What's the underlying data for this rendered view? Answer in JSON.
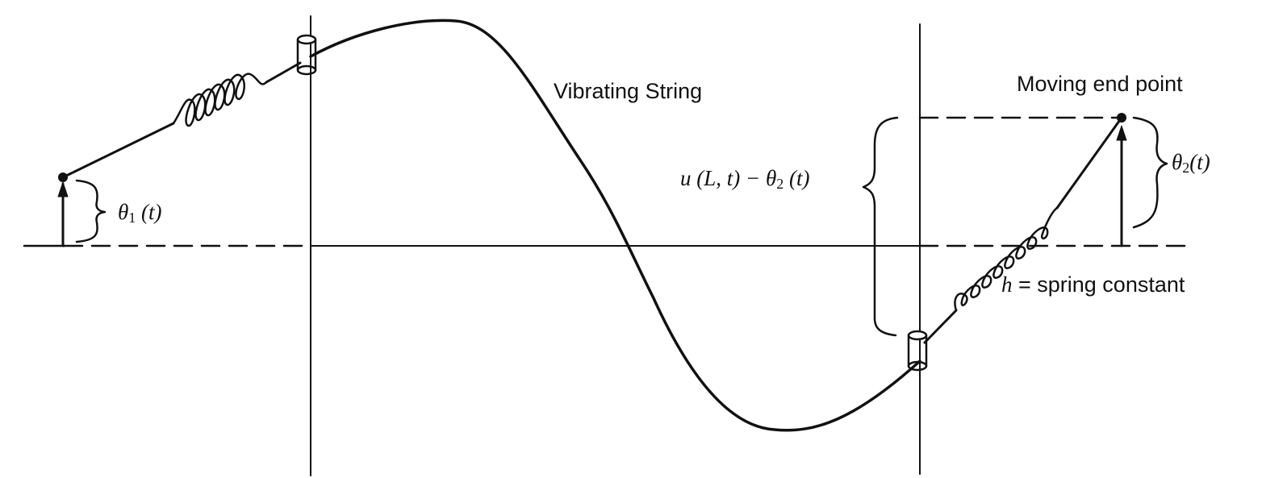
{
  "labels": {
    "vibrating_string": "Vibrating String",
    "moving_end_point": "Moving end point",
    "theta1": {
      "symbol": "θ",
      "sub": "1",
      "arg": " (t)"
    },
    "theta2": {
      "symbol": "θ",
      "sub": "2",
      "arg": "(t)"
    },
    "left_expression": {
      "lhs": "u (L, t) − θ",
      "sub": "2",
      "arg": " (t)"
    },
    "spring_constant": {
      "symbol": "h",
      "text": " = spring constant"
    }
  },
  "colors": {
    "ink": "#111111",
    "background": "#ffffff"
  }
}
